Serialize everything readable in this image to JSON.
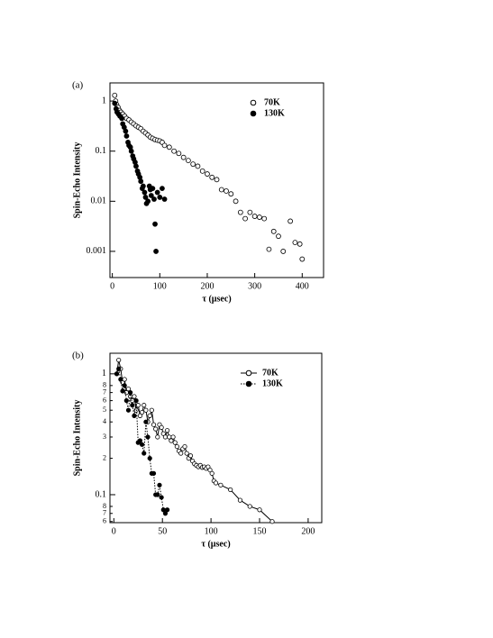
{
  "chart_data": [
    {
      "type": "scatter",
      "label": "(a)",
      "xlabel": "τ (µsec)",
      "ylabel": "Spin-Echo Intensity",
      "ylog": true,
      "legend": "top-right",
      "xlim": [
        -5,
        445
      ],
      "xticks": [
        0,
        100,
        200,
        300,
        400
      ],
      "ylim": [
        0.0003,
        2.3
      ],
      "yticks": [
        0.001,
        0.01,
        0.1,
        1
      ],
      "series": [
        {
          "name": "70K",
          "color": "#000000",
          "marker": "open",
          "x": [
            5,
            7,
            9,
            12,
            15,
            18,
            22,
            26,
            30,
            35,
            40,
            45,
            50,
            55,
            60,
            65,
            70,
            75,
            80,
            85,
            90,
            95,
            100,
            105,
            110,
            120,
            130,
            140,
            150,
            160,
            170,
            180,
            190,
            200,
            210,
            220,
            230,
            240,
            250,
            260,
            270,
            280,
            290,
            300,
            310,
            320,
            330,
            340,
            350,
            360,
            375,
            385,
            395,
            400
          ],
          "values": [
            1.3,
            1.0,
            0.85,
            0.75,
            0.65,
            0.6,
            0.55,
            0.5,
            0.45,
            0.42,
            0.38,
            0.35,
            0.32,
            0.3,
            0.28,
            0.25,
            0.23,
            0.21,
            0.19,
            0.18,
            0.17,
            0.165,
            0.16,
            0.15,
            0.13,
            0.12,
            0.1,
            0.09,
            0.075,
            0.065,
            0.055,
            0.05,
            0.04,
            0.035,
            0.03,
            0.027,
            0.017,
            0.016,
            0.014,
            0.01,
            0.006,
            0.0045,
            0.006,
            0.005,
            0.0048,
            0.0045,
            0.0011,
            0.0025,
            0.002,
            0.001,
            0.004,
            0.0015,
            0.0014,
            0.0007
          ]
        },
        {
          "name": "130K",
          "color": "#000000",
          "marker": "filled",
          "x": [
            5,
            8,
            10,
            13,
            16,
            20,
            22,
            25,
            28,
            30,
            33,
            35,
            38,
            40,
            43,
            45,
            48,
            50,
            53,
            55,
            58,
            60,
            63,
            65,
            68,
            70,
            72,
            75,
            78,
            80,
            82,
            85,
            88,
            90,
            92,
            95,
            100,
            105,
            110
          ],
          "values": [
            0.9,
            0.7,
            0.6,
            0.55,
            0.5,
            0.45,
            0.35,
            0.3,
            0.25,
            0.2,
            0.15,
            0.13,
            0.12,
            0.1,
            0.08,
            0.07,
            0.06,
            0.05,
            0.04,
            0.035,
            0.03,
            0.025,
            0.018,
            0.02,
            0.015,
            0.012,
            0.009,
            0.01,
            0.02,
            0.017,
            0.013,
            0.018,
            0.011,
            0.0035,
            0.001,
            0.015,
            0.012,
            0.018,
            0.011
          ]
        }
      ]
    },
    {
      "type": "line",
      "label": "(b)",
      "xlabel": "τ (µsec)",
      "ylabel": "Spin-Echo Intensity",
      "ylog": true,
      "legend": "top-right",
      "xlim": [
        -4,
        214
      ],
      "xticks": [
        0,
        50,
        100,
        150,
        200
      ],
      "ylim": [
        0.0587,
        1.48
      ],
      "yticks": [
        {
          "value": 0.06,
          "label": "6"
        },
        {
          "value": 0.07,
          "label": "7"
        },
        {
          "value": 0.08,
          "label": "8"
        },
        0.1,
        {
          "value": 0.2,
          "label": "2"
        },
        {
          "value": 0.3,
          "label": "3"
        },
        {
          "value": 0.4,
          "label": "4"
        },
        {
          "value": 0.5,
          "label": "5"
        },
        {
          "value": 0.6,
          "label": "6"
        },
        {
          "value": 0.7,
          "label": "7"
        },
        {
          "value": 0.8,
          "label": "8"
        },
        1
      ],
      "series": [
        {
          "name": "70K",
          "color": "#000000",
          "marker": "open",
          "line": "solid",
          "x": [
            3,
            5,
            7,
            9,
            11,
            13,
            15,
            17,
            19,
            21,
            23,
            25,
            27,
            29,
            31,
            33,
            35,
            37,
            39,
            41,
            43,
            45,
            47,
            49,
            51,
            53,
            55,
            57,
            59,
            61,
            63,
            65,
            67,
            69,
            71,
            73,
            75,
            77,
            79,
            81,
            83,
            85,
            87,
            89,
            91,
            93,
            95,
            97,
            99,
            101,
            103,
            105,
            110,
            120,
            130,
            140,
            150,
            163
          ],
          "values": [
            1.0,
            1.3,
            1.1,
            0.85,
            0.9,
            0.7,
            0.75,
            0.65,
            0.6,
            0.65,
            0.5,
            0.55,
            0.45,
            0.48,
            0.55,
            0.5,
            0.4,
            0.45,
            0.5,
            0.38,
            0.35,
            0.3,
            0.38,
            0.36,
            0.32,
            0.3,
            0.34,
            0.3,
            0.28,
            0.3,
            0.27,
            0.25,
            0.23,
            0.22,
            0.24,
            0.25,
            0.22,
            0.2,
            0.21,
            0.19,
            0.18,
            0.175,
            0.17,
            0.175,
            0.168,
            0.17,
            0.165,
            0.17,
            0.16,
            0.15,
            0.13,
            0.125,
            0.12,
            0.11,
            0.09,
            0.08,
            0.075,
            0.06
          ]
        },
        {
          "name": "130K",
          "color": "#000000",
          "marker": "filled",
          "line": "dotted",
          "x": [
            3,
            5,
            7,
            9,
            11,
            13,
            15,
            17,
            19,
            21,
            23,
            25,
            27,
            29,
            31,
            33,
            35,
            37,
            39,
            41,
            43,
            45,
            47,
            49,
            51,
            53,
            55
          ],
          "values": [
            1.0,
            1.1,
            0.9,
            0.72,
            0.8,
            0.6,
            0.5,
            0.7,
            0.55,
            0.45,
            0.6,
            0.27,
            0.28,
            0.26,
            0.22,
            0.4,
            0.3,
            0.2,
            0.15,
            0.15,
            0.1,
            0.1,
            0.12,
            0.095,
            0.075,
            0.07,
            0.075
          ]
        }
      ]
    }
  ]
}
